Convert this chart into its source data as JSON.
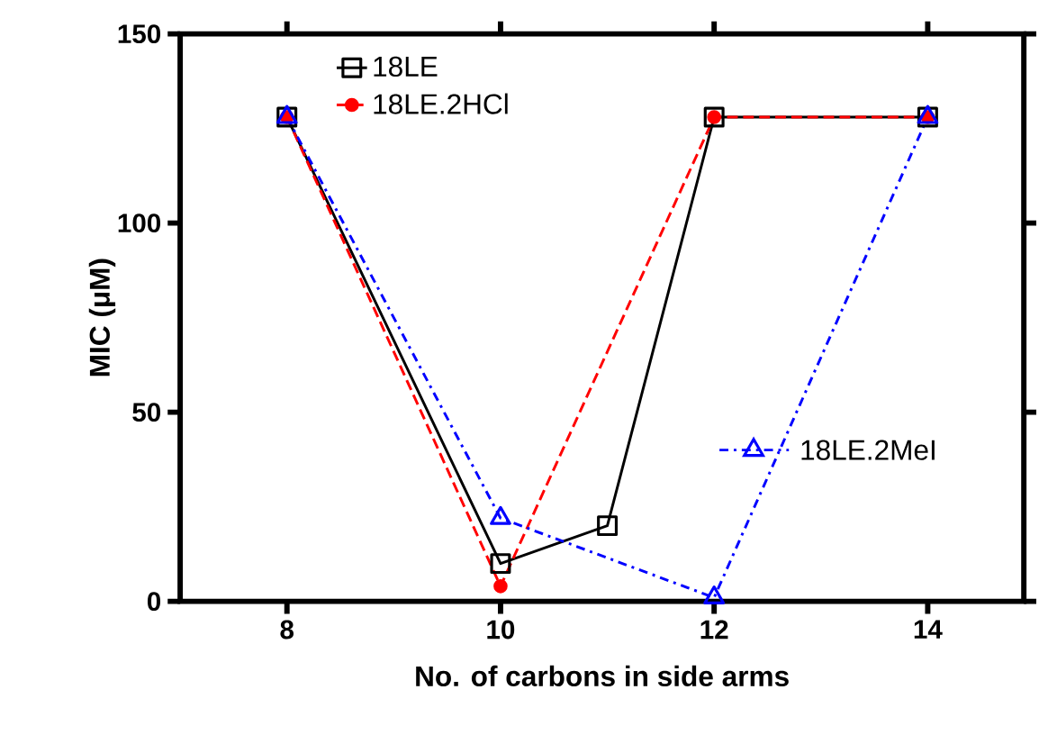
{
  "chart_data": {
    "type": "line",
    "xlabel": "No. of carbons in side arms",
    "ylabel": "MIC (μM)",
    "xlim": [
      7,
      14.9
    ],
    "ylim": [
      0,
      150
    ],
    "xticks": [
      8,
      10,
      12,
      14
    ],
    "yticks": [
      0,
      50,
      100,
      150
    ],
    "grid": false,
    "legend": "top",
    "series": [
      {
        "name": "18LE",
        "color": "#000000",
        "marker": "square",
        "line_style": "solid",
        "x": [
          8,
          10,
          11,
          12,
          14
        ],
        "values": [
          128,
          10,
          20,
          128,
          128
        ]
      },
      {
        "name": "18LE.2HCl",
        "color": "#ff0000",
        "marker": "circle",
        "line_style": "dashed",
        "x": [
          8,
          10,
          12,
          14
        ],
        "values": [
          128,
          4,
          128,
          128
        ]
      },
      {
        "name": "18LE.2MeI",
        "color": "#0000ff",
        "marker": "triangle",
        "line_style": "dashdot",
        "x": [
          8,
          10,
          12,
          14
        ],
        "values": [
          128,
          22,
          1,
          128
        ]
      }
    ]
  }
}
